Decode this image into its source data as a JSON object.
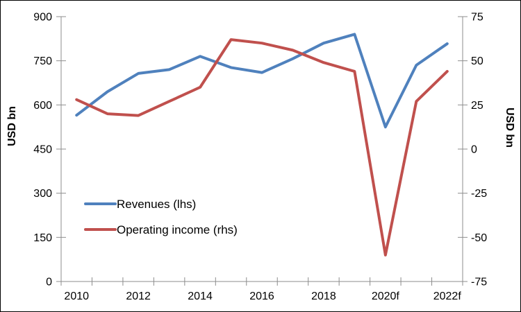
{
  "chart_data": {
    "type": "line",
    "title": "",
    "x": [
      2010,
      2011,
      2012,
      2013,
      2014,
      2015,
      2016,
      2017,
      2018,
      2019,
      2020,
      2021,
      2022
    ],
    "x_tick_labels": [
      "2010",
      "2012",
      "2014",
      "2016",
      "2018",
      "2020f",
      "2022f"
    ],
    "series": [
      {
        "name": "Revenues (lhs)",
        "axis": "left",
        "color": "#4F81BD",
        "values": [
          565,
          645,
          707,
          720,
          765,
          727,
          710,
          757,
          810,
          840,
          525,
          735,
          808
        ]
      },
      {
        "name": "Operating income (rhs)",
        "axis": "right",
        "color": "#C0504D",
        "values": [
          28,
          20,
          19,
          27,
          35,
          62,
          60,
          56,
          49,
          44,
          -60,
          27,
          44
        ]
      }
    ],
    "left_axis": {
      "title": "USD bn",
      "min": 0,
      "max": 900,
      "step": 150,
      "ticks": [
        "0",
        "150",
        "300",
        "450",
        "600",
        "750",
        "900"
      ]
    },
    "right_axis": {
      "title": "USD bn",
      "min": -75,
      "max": 75,
      "step": 25,
      "ticks": [
        "-75",
        "-50",
        "-25",
        "0",
        "25",
        "50",
        "75"
      ]
    },
    "legend_position": "inside-left-middle",
    "grid": false,
    "axis_color": "#8C8C8C",
    "text_color": "#000000",
    "line_width": 4
  }
}
